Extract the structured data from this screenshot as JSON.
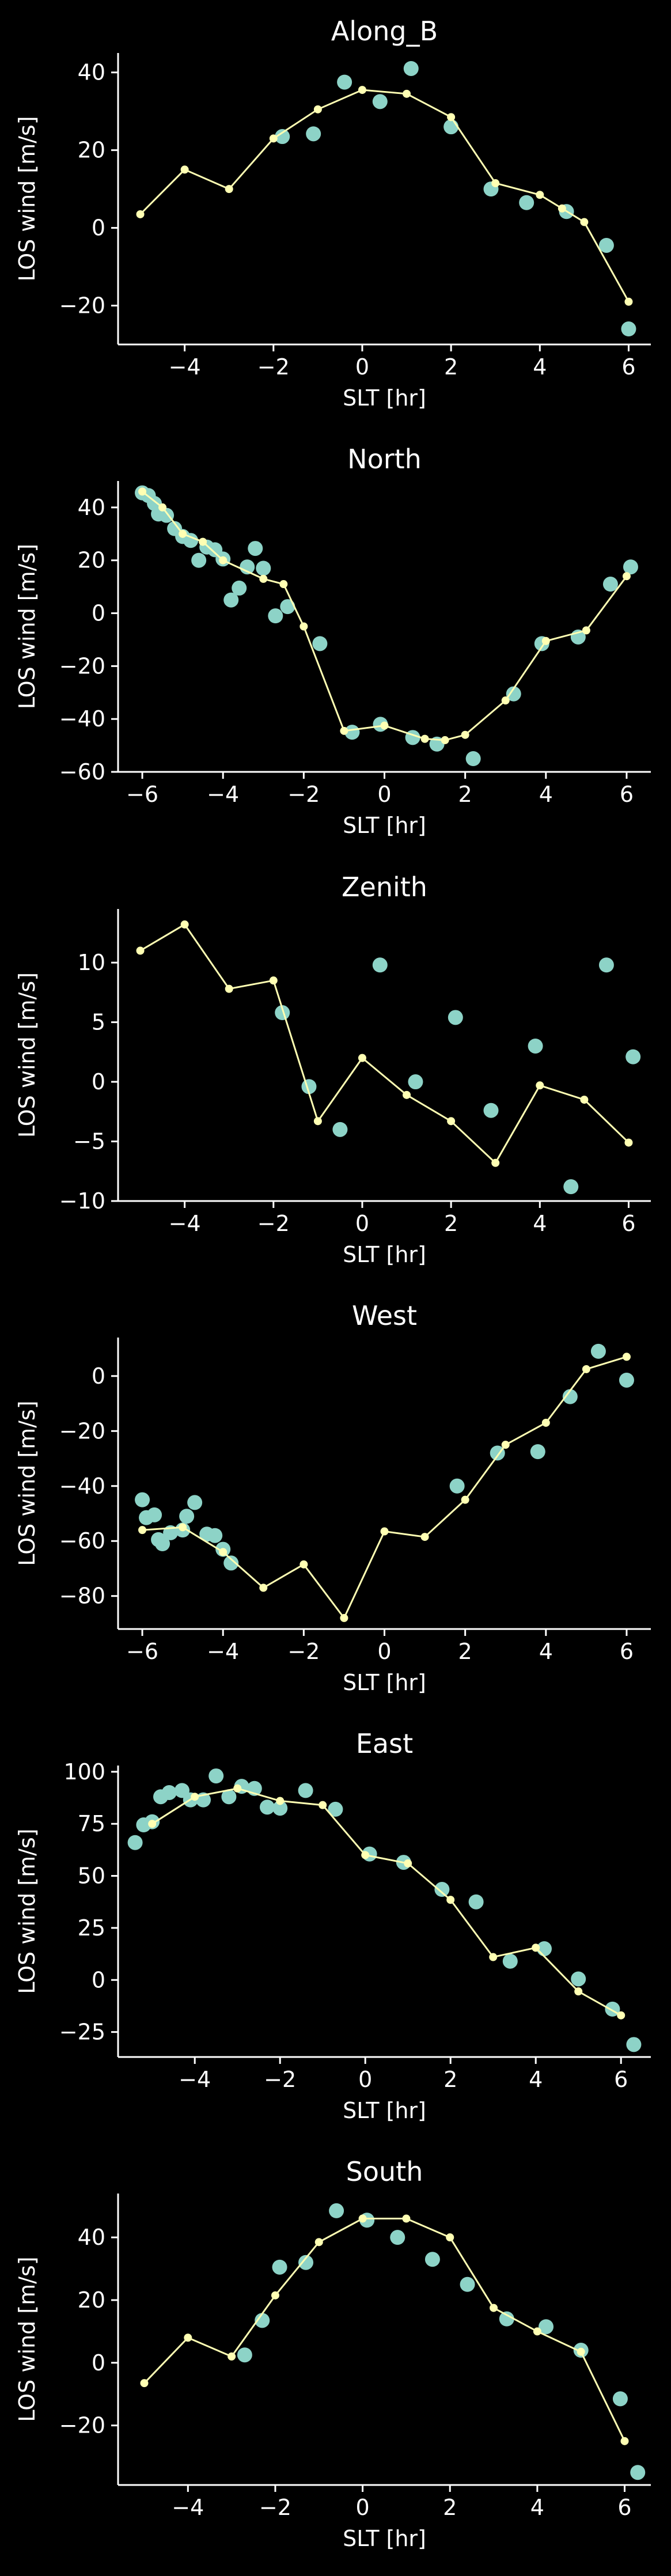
{
  "colors": {
    "background": "#000000",
    "axes": "#ffffff",
    "scatter": "#8dd3c7",
    "line": "#ffffb3"
  },
  "chart_data": [
    {
      "type": "scatter",
      "title": "Along_B",
      "xlabel": "SLT [hr]",
      "ylabel": "LOS wind [m/s]",
      "xlim": [
        -5.5,
        6.5
      ],
      "ylim": [
        -30,
        45
      ],
      "xticks": [
        -4,
        -2,
        0,
        2,
        4,
        6
      ],
      "xtick_labels": [
        "−4",
        "−2",
        "0",
        "2",
        "4",
        "6"
      ],
      "yticks": [
        -20,
        0,
        20,
        40
      ],
      "ytick_labels": [
        "−20",
        "0",
        "20",
        "40"
      ],
      "grid": false,
      "scatter_points": [
        [
          -1.8,
          23.5
        ],
        [
          -1.1,
          24.2
        ],
        [
          -0.4,
          37.5
        ],
        [
          0.4,
          32.5
        ],
        [
          1.1,
          41
        ],
        [
          2.0,
          26
        ],
        [
          2.9,
          10
        ],
        [
          3.7,
          6.5
        ],
        [
          4.6,
          4.2
        ],
        [
          5.5,
          -4.5
        ],
        [
          6.0,
          -26
        ]
      ],
      "line_points": [
        [
          -5,
          3.5
        ],
        [
          -4,
          15
        ],
        [
          -3,
          10
        ],
        [
          -2,
          23
        ],
        [
          -1,
          30.5
        ],
        [
          0,
          35.5
        ],
        [
          1,
          34.5
        ],
        [
          2,
          28.5
        ],
        [
          3,
          11.5
        ],
        [
          4,
          8.5
        ],
        [
          4.5,
          5
        ],
        [
          5,
          1.5
        ],
        [
          6,
          -19
        ]
      ]
    },
    {
      "type": "scatter",
      "title": "North",
      "xlabel": "SLT [hr]",
      "ylabel": "LOS wind [m/s]",
      "xlim": [
        -6.6,
        6.6
      ],
      "ylim": [
        -60,
        50
      ],
      "xticks": [
        -6,
        -4,
        -2,
        0,
        2,
        4,
        6
      ],
      "xtick_labels": [
        "−6",
        "−4",
        "−2",
        "0",
        "2",
        "4",
        "6"
      ],
      "yticks": [
        -60,
        -40,
        -20,
        0,
        20,
        40
      ],
      "ytick_labels": [
        "−60",
        "−40",
        "−20",
        "0",
        "20",
        "40"
      ],
      "grid": false,
      "scatter_points": [
        [
          -6.0,
          45.5
        ],
        [
          -5.85,
          44.5
        ],
        [
          -5.7,
          41.5
        ],
        [
          -5.6,
          37.5
        ],
        [
          -5.4,
          37
        ],
        [
          -5.2,
          32
        ],
        [
          -5.0,
          29
        ],
        [
          -4.8,
          27.5
        ],
        [
          -4.6,
          20
        ],
        [
          -4.4,
          25
        ],
        [
          -4.2,
          24
        ],
        [
          -4.0,
          20.5
        ],
        [
          -3.8,
          5
        ],
        [
          -3.6,
          9.5
        ],
        [
          -3.4,
          17.5
        ],
        [
          -3.2,
          24.5
        ],
        [
          -3.0,
          17
        ],
        [
          -2.7,
          -1
        ],
        [
          -2.4,
          2.5
        ],
        [
          -1.6,
          -11.5
        ],
        [
          -0.8,
          -45
        ],
        [
          -0.1,
          -42
        ],
        [
          0.7,
          -47
        ],
        [
          1.3,
          -49.5
        ],
        [
          2.2,
          -55
        ],
        [
          3.2,
          -30.5
        ],
        [
          3.9,
          -11.5
        ],
        [
          4.8,
          -9
        ],
        [
          5.6,
          11
        ],
        [
          6.1,
          17.5
        ]
      ],
      "line_points": [
        [
          -6,
          46
        ],
        [
          -5.5,
          40
        ],
        [
          -5,
          30
        ],
        [
          -4.5,
          27
        ],
        [
          -4,
          20
        ],
        [
          -3,
          13
        ],
        [
          -2.5,
          11
        ],
        [
          -2,
          -5
        ],
        [
          -1,
          -44.5
        ],
        [
          0,
          -42.5
        ],
        [
          1,
          -47.5
        ],
        [
          1.5,
          -48
        ],
        [
          2,
          -46
        ],
        [
          3,
          -33
        ],
        [
          4,
          -10.5
        ],
        [
          5,
          -6.5
        ],
        [
          6,
          14
        ]
      ]
    },
    {
      "type": "scatter",
      "title": "Zenith",
      "xlabel": "SLT [hr]",
      "ylabel": "LOS wind [m/s]",
      "xlim": [
        -5.5,
        6.5
      ],
      "ylim": [
        -10,
        14.5
      ],
      "xticks": [
        -4,
        -2,
        0,
        2,
        4,
        6
      ],
      "xtick_labels": [
        "−4",
        "−2",
        "0",
        "2",
        "4",
        "6"
      ],
      "yticks": [
        -10,
        -5,
        0,
        5,
        10
      ],
      "ytick_labels": [
        "−10",
        "−5",
        "0",
        "5",
        "10"
      ],
      "grid": false,
      "scatter_points": [
        [
          -1.8,
          5.8
        ],
        [
          -1.2,
          -0.4
        ],
        [
          -0.5,
          -4
        ],
        [
          0.4,
          9.8
        ],
        [
          1.2,
          0
        ],
        [
          2.1,
          5.4
        ],
        [
          2.9,
          -2.4
        ],
        [
          3.9,
          3
        ],
        [
          4.7,
          -8.8
        ],
        [
          5.5,
          9.8
        ],
        [
          6.1,
          2.1
        ]
      ],
      "line_points": [
        [
          -5,
          11
        ],
        [
          -4,
          13.2
        ],
        [
          -3,
          7.8
        ],
        [
          -2,
          8.5
        ],
        [
          -1,
          -3.3
        ],
        [
          0,
          2
        ],
        [
          1,
          -1.1
        ],
        [
          2,
          -3.3
        ],
        [
          3,
          -6.8
        ],
        [
          4,
          -0.3
        ],
        [
          5,
          -1.5
        ],
        [
          6,
          -5.1
        ]
      ]
    },
    {
      "type": "scatter",
      "title": "West",
      "xlabel": "SLT [hr]",
      "ylabel": "LOS wind [m/s]",
      "xlim": [
        -6.6,
        6.6
      ],
      "ylim": [
        -92,
        14
      ],
      "xticks": [
        -6,
        -4,
        -2,
        0,
        2,
        4,
        6
      ],
      "xtick_labels": [
        "−6",
        "−4",
        "−2",
        "0",
        "2",
        "4",
        "6"
      ],
      "yticks": [
        -80,
        -60,
        -40,
        -20,
        0
      ],
      "ytick_labels": [
        "−80",
        "−60",
        "−40",
        "−20",
        "0"
      ],
      "grid": false,
      "scatter_points": [
        [
          -6.0,
          -45
        ],
        [
          -5.9,
          -51.5
        ],
        [
          -5.7,
          -50.5
        ],
        [
          -5.6,
          -59.5
        ],
        [
          -5.5,
          -61
        ],
        [
          -5.3,
          -57
        ],
        [
          -5.0,
          -56
        ],
        [
          -4.9,
          -51
        ],
        [
          -4.7,
          -46
        ],
        [
          -4.4,
          -57.5
        ],
        [
          -4.2,
          -58
        ],
        [
          -4.0,
          -63
        ],
        [
          -3.8,
          -68
        ],
        [
          1.8,
          -40
        ],
        [
          2.8,
          -28
        ],
        [
          3.8,
          -27.5
        ],
        [
          4.6,
          -7.5
        ],
        [
          5.3,
          9
        ],
        [
          6.0,
          -1.5
        ]
      ],
      "line_points": [
        [
          -6,
          -56
        ],
        [
          -5,
          -55
        ],
        [
          -4,
          -64
        ],
        [
          -3,
          -77
        ],
        [
          -2,
          -68.5
        ],
        [
          -1,
          -88
        ],
        [
          0,
          -56.5
        ],
        [
          1,
          -58.5
        ],
        [
          2,
          -45
        ],
        [
          3,
          -25
        ],
        [
          4,
          -17
        ],
        [
          5,
          2.5
        ],
        [
          6,
          7
        ]
      ]
    },
    {
      "type": "scatter",
      "title": "East",
      "xlabel": "SLT [hr]",
      "ylabel": "LOS wind [m/s]",
      "xlim": [
        -5.8,
        6.7
      ],
      "ylim": [
        -37,
        103
      ],
      "xticks": [
        -4,
        -2,
        0,
        2,
        4,
        6
      ],
      "xtick_labels": [
        "−4",
        "−2",
        "0",
        "2",
        "4",
        "6"
      ],
      "yticks": [
        -25,
        0,
        25,
        50,
        75,
        100
      ],
      "ytick_labels": [
        "−25",
        "0",
        "25",
        "50",
        "75",
        "100"
      ],
      "grid": false,
      "scatter_points": [
        [
          -5.4,
          66
        ],
        [
          -5.2,
          74.5
        ],
        [
          -5.0,
          76
        ],
        [
          -4.8,
          88
        ],
        [
          -4.6,
          90
        ],
        [
          -4.3,
          91
        ],
        [
          -4.1,
          86.5
        ],
        [
          -3.8,
          86.5
        ],
        [
          -3.5,
          98
        ],
        [
          -3.2,
          88
        ],
        [
          -2.9,
          93
        ],
        [
          -2.6,
          92
        ],
        [
          -2.3,
          83
        ],
        [
          -2.0,
          82.5
        ],
        [
          -1.4,
          91
        ],
        [
          -0.7,
          82
        ],
        [
          0.1,
          60.5
        ],
        [
          0.9,
          56.5
        ],
        [
          1.8,
          43.5
        ],
        [
          2.6,
          37.5
        ],
        [
          3.4,
          9
        ],
        [
          4.2,
          15
        ],
        [
          5.0,
          0.5
        ],
        [
          5.8,
          -14
        ],
        [
          6.3,
          -31
        ]
      ],
      "line_points": [
        [
          -5,
          75
        ],
        [
          -4,
          88
        ],
        [
          -3,
          92
        ],
        [
          -2,
          86
        ],
        [
          -1,
          84
        ],
        [
          0,
          60
        ],
        [
          1,
          56
        ],
        [
          2,
          38.5
        ],
        [
          3,
          11
        ],
        [
          4,
          15.5
        ],
        [
          5,
          -5.5
        ],
        [
          6,
          -17
        ]
      ]
    },
    {
      "type": "scatter",
      "title": "South",
      "xlabel": "SLT [hr]",
      "ylabel": "LOS wind [m/s]",
      "xlim": [
        -5.6,
        6.6
      ],
      "ylim": [
        -39,
        54
      ],
      "xticks": [
        -4,
        -2,
        0,
        2,
        4,
        6
      ],
      "xtick_labels": [
        "−4",
        "−2",
        "0",
        "2",
        "4",
        "6"
      ],
      "yticks": [
        -20,
        0,
        20,
        40
      ],
      "ytick_labels": [
        "−20",
        "0",
        "20",
        "40"
      ],
      "grid": false,
      "scatter_points": [
        [
          -2.7,
          2.5
        ],
        [
          -2.3,
          13.5
        ],
        [
          -1.9,
          30.5
        ],
        [
          -1.3,
          32
        ],
        [
          -0.6,
          48.5
        ],
        [
          0.1,
          45.5
        ],
        [
          0.8,
          40
        ],
        [
          1.6,
          33
        ],
        [
          2.4,
          25
        ],
        [
          3.3,
          14
        ],
        [
          4.2,
          11.5
        ],
        [
          5.0,
          4
        ],
        [
          5.9,
          -11.5
        ],
        [
          6.3,
          -35
        ]
      ],
      "line_points": [
        [
          -5,
          -6.5
        ],
        [
          -4,
          8
        ],
        [
          -3,
          2
        ],
        [
          -2,
          21.5
        ],
        [
          -1,
          38.5
        ],
        [
          0,
          46
        ],
        [
          1,
          46
        ],
        [
          2,
          40
        ],
        [
          3,
          17.5
        ],
        [
          4,
          10
        ],
        [
          5,
          3.5
        ],
        [
          6,
          -25
        ]
      ]
    }
  ]
}
